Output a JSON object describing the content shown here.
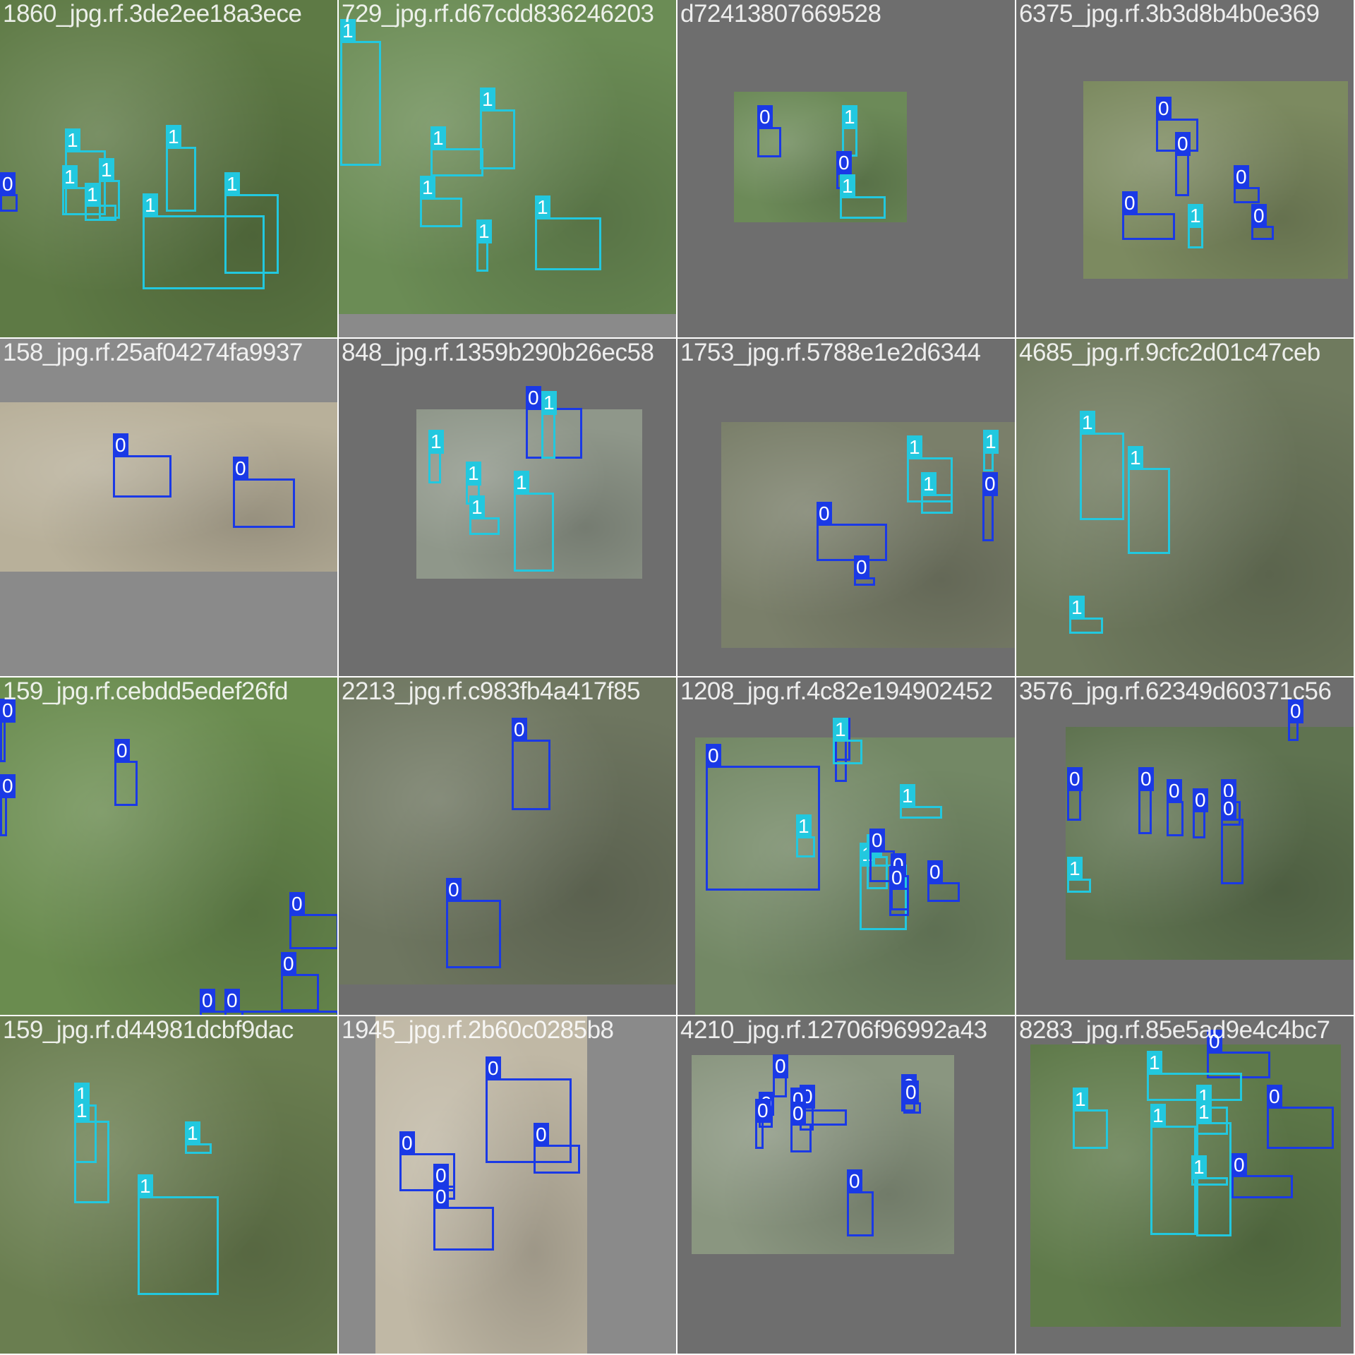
{
  "mosaic": {
    "class_colors": {
      "0": "#1a39e6",
      "1": "#22c8df"
    },
    "tiles": [
      {
        "label": "1860_jpg.rf.3de2ee18a3ece",
        "bg": "#8a8a8a",
        "photo": "#5e7a45",
        "boxes": [
          [
            "0",
            0,
            275,
            25,
            300
          ],
          [
            "1",
            92,
            213,
            150,
            305
          ],
          [
            "1",
            235,
            208,
            278,
            300
          ],
          [
            "1",
            88,
            265,
            123,
            305
          ],
          [
            "1",
            120,
            290,
            165,
            313
          ],
          [
            "1",
            140,
            255,
            170,
            310
          ],
          [
            "1",
            202,
            305,
            375,
            410
          ],
          [
            "1",
            318,
            275,
            395,
            388
          ]
        ]
      },
      {
        "label": "729_jpg.rf.d67cdd836246203",
        "bg": "#8a8a8a",
        "photo": "#6b8c55",
        "boxes": [
          [
            "1",
            2,
            58,
            60,
            235
          ],
          [
            "1",
            130,
            210,
            205,
            250
          ],
          [
            "1",
            200,
            155,
            250,
            240
          ],
          [
            "1",
            115,
            280,
            175,
            322
          ],
          [
            "1",
            195,
            342,
            212,
            385
          ],
          [
            "1",
            278,
            308,
            372,
            383
          ]
        ]
      },
      {
        "label": "d72413807669528",
        "bg": "#6e6e6e",
        "photo": "#6c8a58",
        "boxes": [
          [
            "0",
            113,
            180,
            147,
            223
          ],
          [
            "1",
            233,
            180,
            255,
            222
          ],
          [
            "0",
            225,
            245,
            245,
            268
          ],
          [
            "1",
            230,
            278,
            295,
            310
          ]
        ]
      },
      {
        "label": "6375_jpg.rf.3b3d8b4b0e369",
        "bg": "#6e6e6e",
        "photo": "#7c8a60",
        "boxes": [
          [
            "0",
            198,
            168,
            258,
            215
          ],
          [
            "0",
            225,
            218,
            245,
            278
          ],
          [
            "0",
            308,
            265,
            345,
            288
          ],
          [
            "0",
            150,
            302,
            225,
            340
          ],
          [
            "1",
            243,
            320,
            265,
            352
          ],
          [
            "0",
            333,
            320,
            365,
            340
          ]
        ]
      },
      {
        "label": "158_jpg.rf.25af04274fa9937",
        "bg": "#8a8a8a",
        "photo": "#b8b09a",
        "boxes": [
          [
            "0",
            160,
            645,
            243,
            705
          ],
          [
            "0",
            330,
            678,
            418,
            748
          ]
        ]
      },
      {
        "label": "848_jpg.rf.1359b290b26ec58",
        "bg": "#6e6e6e",
        "photo": "#8f978a",
        "boxes": [
          [
            "0",
            265,
            578,
            345,
            650
          ],
          [
            "1",
            287,
            585,
            307,
            650
          ],
          [
            "1",
            127,
            640,
            145,
            685
          ],
          [
            "1",
            180,
            685,
            200,
            715
          ],
          [
            "1",
            185,
            733,
            228,
            758
          ],
          [
            "1",
            248,
            698,
            305,
            810
          ]
        ]
      },
      {
        "label": "1753_jpg.rf.5788e1e2d6344",
        "bg": "#6e6e6e",
        "photo": "#7a7f6a",
        "boxes": [
          [
            "1",
            325,
            648,
            390,
            712
          ],
          [
            "1",
            345,
            700,
            390,
            728
          ],
          [
            "1",
            433,
            640,
            448,
            668
          ],
          [
            "0",
            432,
            700,
            448,
            767
          ],
          [
            "0",
            197,
            742,
            297,
            795
          ],
          [
            "0",
            250,
            818,
            280,
            830
          ]
        ]
      },
      {
        "label": "4685_jpg.rf.9cfc2d01c47ceb",
        "bg": "#6e6e6e",
        "photo": "#6f7a5e",
        "boxes": [
          [
            "1",
            90,
            613,
            153,
            737
          ],
          [
            "1",
            158,
            663,
            218,
            785
          ],
          [
            "1",
            75,
            875,
            123,
            898
          ]
        ]
      },
      {
        "label": "159_jpg.rf.cebdd5edef26fd",
        "bg": "#8a8a8a",
        "photo": "#6a8c4f",
        "boxes": [
          [
            "0",
            0,
            990,
            8,
            1080
          ],
          [
            "0",
            0,
            1128,
            10,
            1185
          ],
          [
            "0",
            162,
            1078,
            195,
            1142
          ],
          [
            "0",
            410,
            1295,
            480,
            1345
          ],
          [
            "0",
            398,
            1380,
            452,
            1433
          ],
          [
            "0",
            283,
            1432,
            345,
            1512
          ],
          [
            "0",
            318,
            1432,
            480,
            1500
          ]
        ]
      },
      {
        "label": "2213_jpg.rf.c983fb4a417f85",
        "bg": "#6e6e6e",
        "photo": "#6e7660",
        "boxes": [
          [
            "0",
            245,
            1048,
            300,
            1148
          ],
          [
            "0",
            152,
            1275,
            230,
            1372
          ]
        ]
      },
      {
        "label": "1208_jpg.rf.4c82e194902452",
        "bg": "#6e6e6e",
        "photo": "#738865",
        "boxes": [
          [
            "0",
            223,
            1048,
            240,
            1108
          ],
          [
            "0",
            220,
            1048,
            245,
            1078
          ],
          [
            "1",
            220,
            1048,
            262,
            1083
          ],
          [
            "0",
            40,
            1085,
            202,
            1262
          ],
          [
            "1",
            168,
            1185,
            195,
            1215
          ],
          [
            "1",
            315,
            1142,
            375,
            1160
          ],
          [
            "1",
            258,
            1225,
            325,
            1318
          ],
          [
            "1",
            268,
            1213,
            298,
            1260
          ],
          [
            "0",
            272,
            1205,
            308,
            1250
          ],
          [
            "0",
            302,
            1240,
            328,
            1290
          ],
          [
            "0",
            300,
            1258,
            328,
            1298
          ],
          [
            "0",
            354,
            1250,
            400,
            1278
          ]
        ]
      },
      {
        "label": "3576_jpg.rf.62349d60371c56",
        "bg": "#6e6e6e",
        "photo": "#5f7350",
        "boxes": [
          [
            "0",
            385,
            1022,
            400,
            1050
          ],
          [
            "0",
            72,
            1118,
            92,
            1163
          ],
          [
            "0",
            173,
            1118,
            192,
            1182
          ],
          [
            "0",
            213,
            1135,
            237,
            1185
          ],
          [
            "0",
            250,
            1148,
            268,
            1188
          ],
          [
            "0",
            290,
            1135,
            318,
            1170
          ],
          [
            "0",
            290,
            1160,
            322,
            1253
          ],
          [
            "1",
            72,
            1245,
            106,
            1265
          ]
        ]
      },
      {
        "label": "159_jpg.rf.d44981dcbf9dac",
        "bg": "#8a8a8a",
        "photo": "#6a7e50",
        "boxes": [
          [
            "1",
            105,
            1565,
            137,
            1648
          ],
          [
            "1",
            105,
            1588,
            155,
            1705
          ],
          [
            "1",
            262,
            1620,
            300,
            1635
          ],
          [
            "1",
            195,
            1695,
            310,
            1835
          ]
        ]
      },
      {
        "label": "1945_jpg.rf.2b60c0285b8",
        "bg": "#8a8a8a",
        "photo": "#c0b8a5",
        "boxes": [
          [
            "0",
            208,
            1528,
            330,
            1648
          ],
          [
            "0",
            276,
            1622,
            342,
            1663
          ],
          [
            "0",
            86,
            1634,
            165,
            1688
          ],
          [
            "0",
            134,
            1680,
            165,
            1700
          ],
          [
            "0",
            134,
            1710,
            220,
            1772
          ]
        ]
      },
      {
        "label": "4210_jpg.rf.12706f96992a43",
        "bg": "#6e6e6e",
        "photo": "#8a9680",
        "boxes": [
          [
            "0",
            135,
            1525,
            155,
            1555
          ],
          [
            "0",
            115,
            1578,
            135,
            1598
          ],
          [
            "0",
            173,
            1568,
            193,
            1602
          ],
          [
            "0",
            110,
            1588,
            122,
            1628
          ],
          [
            "0",
            160,
            1572,
            240,
            1595
          ],
          [
            "0",
            160,
            1592,
            190,
            1633
          ],
          [
            "0",
            317,
            1553,
            337,
            1575
          ],
          [
            "0",
            320,
            1562,
            345,
            1578
          ],
          [
            "0",
            240,
            1688,
            278,
            1752
          ]
        ]
      },
      {
        "label": "8283_jpg.rf.85e5ad9e4c4bc7",
        "bg": "#6e6e6e",
        "photo": "#5f7a4a",
        "boxes": [
          [
            "0",
            270,
            1490,
            360,
            1528
          ],
          [
            "1",
            185,
            1520,
            320,
            1560
          ],
          [
            "1",
            80,
            1572,
            130,
            1628
          ],
          [
            "1",
            255,
            1568,
            300,
            1608
          ],
          [
            "0",
            355,
            1568,
            450,
            1628
          ],
          [
            "1",
            190,
            1595,
            255,
            1750
          ],
          [
            "1",
            255,
            1590,
            305,
            1752
          ],
          [
            "1",
            248,
            1668,
            300,
            1680
          ],
          [
            "0",
            305,
            1665,
            392,
            1698
          ]
        ]
      }
    ]
  }
}
